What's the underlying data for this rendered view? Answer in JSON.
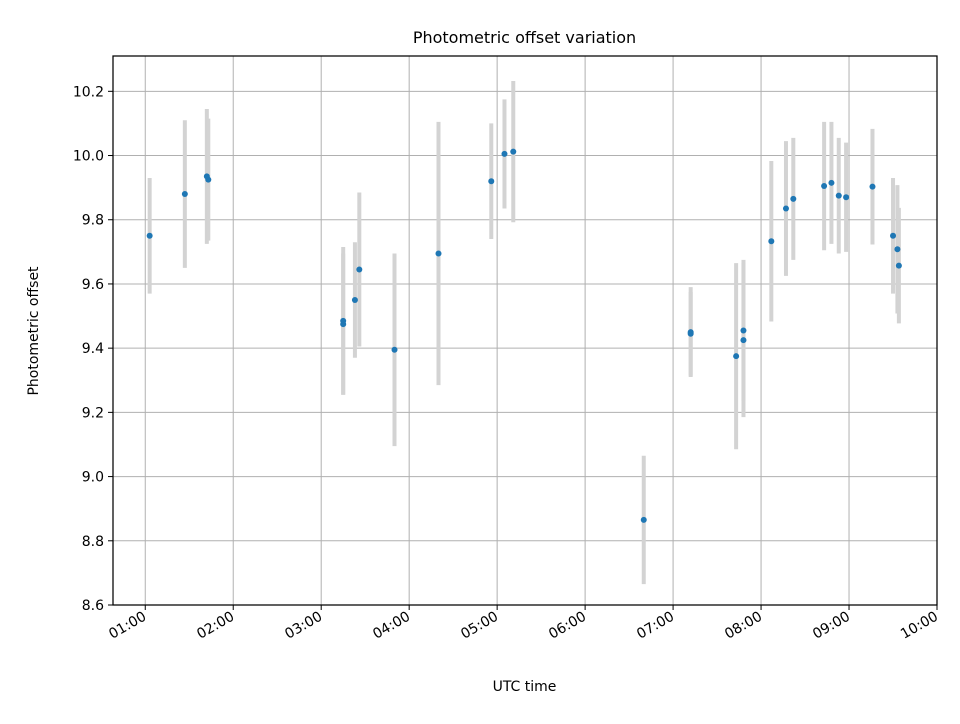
{
  "chart_data": {
    "type": "scatter",
    "title": "Photometric offset variation",
    "xlabel": "UTC time",
    "ylabel": "Photometric offset",
    "x_ticks": [
      "01:00",
      "02:00",
      "03:00",
      "04:00",
      "05:00",
      "06:00",
      "07:00",
      "08:00",
      "09:00",
      "10:00"
    ],
    "y_ticks": [
      "8.6",
      "8.8",
      "9.0",
      "9.2",
      "9.4",
      "9.6",
      "9.8",
      "10.0",
      "10.2"
    ],
    "xlim": [
      "00:38",
      "10:00"
    ],
    "ylim": [
      8.6,
      10.31
    ],
    "grid": true,
    "marker_color": "#1f77b4",
    "errorbar_color": "#d3d3d3",
    "series": [
      {
        "x": [
          "01:03",
          "01:27",
          "01:42",
          "01:43",
          "03:15",
          "03:15",
          "03:23",
          "03:26",
          "03:50",
          "04:20",
          "04:56",
          "05:05",
          "05:11",
          "06:40",
          "07:12",
          "07:12",
          "07:43",
          "07:48",
          "07:48",
          "08:07",
          "08:17",
          "08:22",
          "08:43",
          "08:48",
          "08:53",
          "08:58",
          "09:16",
          "09:30",
          "09:33",
          "09:34"
        ],
        "y": [
          9.75,
          9.88,
          9.935,
          9.925,
          9.485,
          9.475,
          9.55,
          9.645,
          9.395,
          9.695,
          9.92,
          10.005,
          10.012,
          8.865,
          9.45,
          9.445,
          9.375,
          9.455,
          9.425,
          9.733,
          9.835,
          9.865,
          9.905,
          9.915,
          9.875,
          9.87,
          9.903,
          9.75,
          9.708,
          9.657
        ],
        "yerr": [
          0.18,
          0.23,
          0.21,
          0.19,
          0.23,
          0.22,
          0.18,
          0.24,
          0.3,
          0.41,
          0.18,
          0.17,
          0.22,
          0.2,
          0.14,
          0.13,
          0.29,
          0.22,
          0.24,
          0.25,
          0.21,
          0.19,
          0.2,
          0.19,
          0.18,
          0.17,
          0.18,
          0.18,
          0.2,
          0.18
        ]
      }
    ]
  }
}
